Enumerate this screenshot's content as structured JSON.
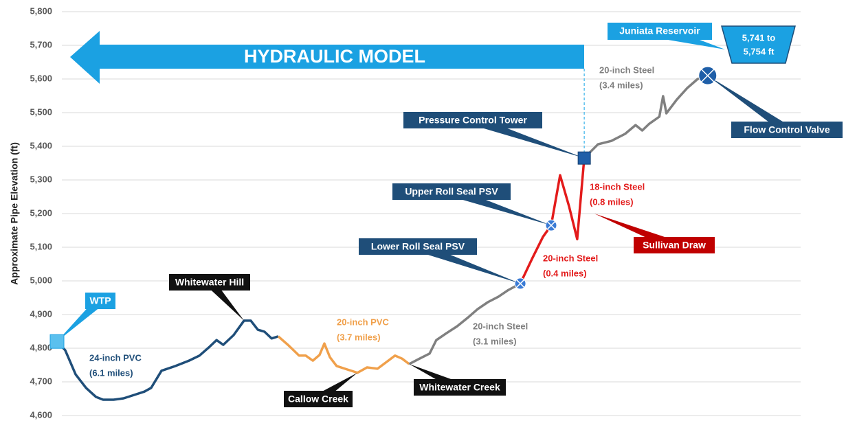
{
  "chart_data": {
    "type": "line",
    "y_label": "Approximate Pipe Elevation (ft)",
    "xlim": [
      0,
      20
    ],
    "ylim": [
      4600,
      5800
    ],
    "yticks": [
      {
        "value": 4600,
        "label": "4,600"
      },
      {
        "value": 4700,
        "label": "4,700"
      },
      {
        "value": 4800,
        "label": "4,800"
      },
      {
        "value": 4900,
        "label": "4,900"
      },
      {
        "value": 5000,
        "label": "5,000"
      },
      {
        "value": 5100,
        "label": "5,100"
      },
      {
        "value": 5200,
        "label": "5,200"
      },
      {
        "value": 5300,
        "label": "5,300"
      },
      {
        "value": 5400,
        "label": "5,400"
      },
      {
        "value": 5500,
        "label": "5,500"
      },
      {
        "value": 5600,
        "label": "5,600"
      },
      {
        "value": 5700,
        "label": "5,700"
      },
      {
        "value": 5800,
        "label": "5,800"
      }
    ],
    "grid": true,
    "banner": "HYDRAULIC MODEL",
    "reservoir": {
      "label": "Juniata Reservoir",
      "range": [
        "5,741 to",
        "5,754 ft"
      ]
    },
    "series": [
      {
        "label": [
          "24-inch PVC",
          "(6.1 miles)"
        ],
        "color": "#1f4e79",
        "x": [
          0,
          0.22,
          0.5,
          0.78,
          1.05,
          1.24,
          1.52,
          1.79,
          2.07,
          2.35,
          2.53,
          2.81,
          3.18,
          3.55,
          3.83,
          4.1,
          4.29,
          4.47,
          4.75,
          5.03,
          5.21,
          5.4,
          5.58,
          5.77,
          5.95
        ],
        "values": [
          4820,
          4794,
          4722,
          4682,
          4655,
          4647,
          4647,
          4651,
          4661,
          4671,
          4682,
          4733,
          4747,
          4763,
          4778,
          4804,
          4824,
          4810,
          4839,
          4882,
          4882,
          4855,
          4849,
          4829,
          4835
        ]
      },
      {
        "label": [
          "20-inch PVC",
          "(3.7 miles)"
        ],
        "color": "#f0a04b",
        "x": [
          5.95,
          6.23,
          6.51,
          6.69,
          6.88,
          7.06,
          7.19,
          7.34,
          7.52,
          7.8,
          8.08,
          8.34,
          8.62,
          8.91,
          9.09,
          9.28,
          9.47
        ],
        "values": [
          4835,
          4808,
          4778,
          4778,
          4763,
          4780,
          4814,
          4773,
          4747,
          4737,
          4727,
          4743,
          4739,
          4763,
          4778,
          4769,
          4753
        ]
      },
      {
        "label": [
          "20-inch Steel",
          "(3.1 miles)"
        ],
        "color": "#808080",
        "x": [
          9.47,
          9.75,
          10.02,
          10.2,
          10.48,
          10.76,
          11.04,
          11.31,
          11.59,
          11.87,
          12.14,
          12.46
        ],
        "values": [
          4753,
          4769,
          4784,
          4824,
          4845,
          4865,
          4890,
          4916,
          4937,
          4953,
          4973,
          4992
        ]
      },
      {
        "label": [
          "20-inch Steel",
          "(0.4 miles)"
        ],
        "color": "#e31b1b",
        "x": [
          12.46,
          12.79,
          13.07,
          13.29
        ],
        "values": [
          4992,
          5069,
          5131,
          5165
        ]
      },
      {
        "label": [
          "18-inch Steel",
          "(0.8 miles)"
        ],
        "color": "#e31b1b",
        "x": [
          13.29,
          13.53,
          13.77,
          13.99,
          14.18
        ],
        "values": [
          5165,
          5314,
          5222,
          5124,
          5365
        ]
      },
      {
        "label": [
          "20-inch Steel",
          "(3.4 miles)"
        ],
        "color": "#808080",
        "x": [
          14.18,
          14.55,
          14.91,
          15.28,
          15.56,
          15.74,
          15.93,
          16.2,
          16.3,
          16.39,
          16.67,
          16.95,
          17.23,
          17.5
        ],
        "values": [
          5365,
          5406,
          5416,
          5437,
          5463,
          5447,
          5467,
          5488,
          5549,
          5498,
          5539,
          5573,
          5600,
          5610
        ]
      }
    ],
    "callouts": [
      {
        "label": "WTP",
        "x": 0,
        "y": 4820
      },
      {
        "label": "Whitewater Hill",
        "x": 5.03,
        "y": 4882
      },
      {
        "label": "Callow Creek",
        "x": 8.08,
        "y": 4727
      },
      {
        "label": "Whitewater Creek",
        "x": 9.47,
        "y": 4753
      },
      {
        "label": "Lower Roll Seal PSV",
        "x": 12.46,
        "y": 4992
      },
      {
        "label": "Upper Roll Seal PSV",
        "x": 13.29,
        "y": 5165
      },
      {
        "label": "Pressure Control Tower",
        "x": 14.18,
        "y": 5365
      },
      {
        "label": "Sullivan Draw",
        "x": 14.45,
        "y": 5200
      },
      {
        "label": "Flow Control Valve",
        "x": 17.5,
        "y": 5610
      }
    ]
  }
}
